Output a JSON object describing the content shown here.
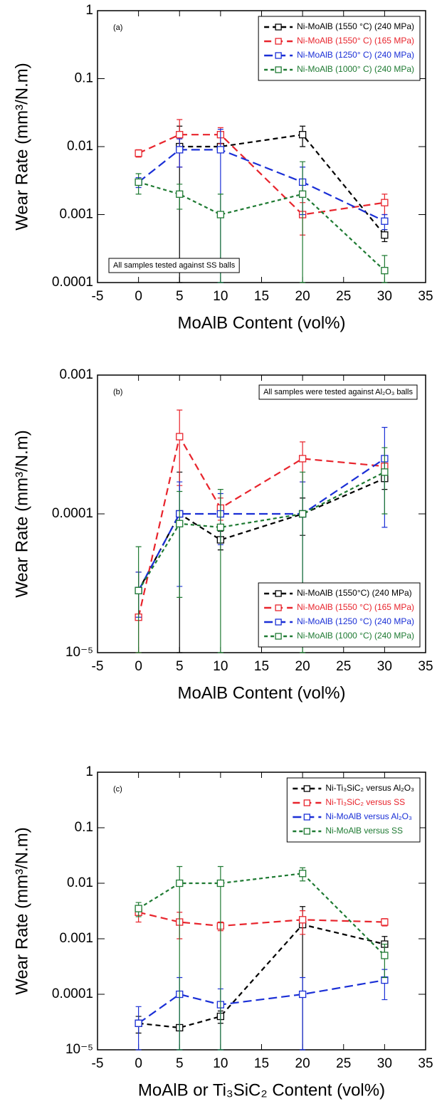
{
  "chart_data": [
    {
      "type": "line",
      "x_label": "MoAlB Content (vol%)",
      "y_label": "Wear Rate (mm³/N.m)",
      "log_y": true,
      "xlim": [
        -5,
        35
      ],
      "xticks": [
        -5,
        0,
        5,
        10,
        15,
        20,
        25,
        30,
        35
      ],
      "ylim": [
        0.0001,
        1
      ],
      "yticks": [
        0.0001,
        0.001,
        0.01,
        0.1,
        1
      ],
      "legend": "upper right",
      "annotations": [
        {
          "text": "(a)",
          "loc": "upper left",
          "box": false
        },
        {
          "text": "All samples tested against SS balls",
          "loc": "lower left",
          "box": true
        }
      ],
      "series": [
        {
          "name": "Ni-MoAlB (1550 °C) (240 MPa)",
          "color": "#000000",
          "x": [
            5,
            10,
            20,
            30
          ],
          "values": [
            0.01,
            0.01,
            0.015,
            0.0005
          ],
          "errors": [
            0.01,
            0.001,
            0.005,
            0.0001
          ]
        },
        {
          "name": "Ni-MoAlB (1550° C) (165 MPa)",
          "color": "#e8242c",
          "x": [
            0,
            5,
            10,
            20,
            30
          ],
          "values": [
            0.008,
            0.015,
            0.015,
            0.001,
            0.0015
          ],
          "errors": [
            0.001,
            0.01,
            0.004,
            0.0005,
            0.0005
          ]
        },
        {
          "name": "Ni-MoAlB (1250° C) (240 MPa)",
          "color": "#1a2fd6",
          "x": [
            0,
            5,
            10,
            20,
            30
          ],
          "values": [
            0.003,
            0.009,
            0.009,
            0.003,
            0.0008
          ],
          "errors": [
            0.0005,
            0.004,
            0.009,
            0.002,
            0.0002
          ]
        },
        {
          "name": "Ni-MoAlB (1000° C) (240 MPa)",
          "color": "#1e7a32",
          "x": [
            0,
            5,
            10,
            20,
            30
          ],
          "values": [
            0.003,
            0.002,
            0.001,
            0.002,
            0.00015
          ],
          "errors": [
            0.001,
            0.0008,
            0.001,
            0.004,
            0.0001
          ]
        }
      ]
    },
    {
      "type": "line",
      "x_label": "MoAlB Content (vol%)",
      "y_label": "Wear Rate (mm³/N.m)",
      "log_y": true,
      "xlim": [
        -5,
        35
      ],
      "xticks": [
        -5,
        0,
        5,
        10,
        15,
        20,
        25,
        30,
        35
      ],
      "ylim": [
        1e-05,
        0.001
      ],
      "yticks": [
        {
          "value": 1e-05,
          "label": "10⁻⁵"
        },
        0.0001,
        0.001
      ],
      "legend": "lower right",
      "annotations": [
        {
          "text": "(b)",
          "loc": "upper left",
          "box": false
        },
        {
          "text": "All samples were tested against Al₂O₃ balls",
          "loc": "upper right",
          "box": true
        }
      ],
      "series": [
        {
          "name": "Ni-MoAlB (1550°C) (240 MPa)",
          "color": "#000000",
          "x": [
            0,
            5,
            10,
            20,
            30
          ],
          "values": [
            2.8e-05,
            0.0001,
            6.5e-05,
            0.0001,
            0.00018
          ],
          "errors": [
            1e-05,
            0.0001,
            1e-05,
            3e-05,
            3e-05
          ]
        },
        {
          "name": "Ni-MoAlB (1550 °C) (165 MPa)",
          "color": "#e8242c",
          "x": [
            0,
            5,
            10,
            20,
            30
          ],
          "values": [
            1.8e-05,
            0.00036,
            0.00011,
            0.00025,
            0.00022
          ],
          "errors": [
            2e-05,
            0.0002,
            2e-05,
            8e-05,
            2e-05
          ]
        },
        {
          "name": "Ni-MoAlB (1250 °C) (240 MPa)",
          "color": "#1a2fd6",
          "x": [
            0,
            5,
            10,
            20,
            30
          ],
          "values": [
            2.8e-05,
            0.0001,
            0.0001,
            0.0001,
            0.00025
          ],
          "errors": [
            1e-05,
            7e-05,
            4e-05,
            7e-05,
            0.00017
          ]
        },
        {
          "name": "Ni-MoAlB (1000 °C) (240 MPa)",
          "color": "#1e7a32",
          "x": [
            0,
            5,
            10,
            20,
            30
          ],
          "values": [
            2.8e-05,
            8.5e-05,
            8e-05,
            0.0001,
            0.0002
          ],
          "errors": [
            3e-05,
            6e-05,
            7e-05,
            0.0001,
            0.0001
          ]
        }
      ]
    },
    {
      "type": "line",
      "x_label": "MoAlB or Ti₃SiC₂ Content (vol%)",
      "y_label": "Wear Rate (mm³/N.m)",
      "log_y": true,
      "xlim": [
        -5,
        35
      ],
      "xticks": [
        -5,
        0,
        5,
        10,
        15,
        20,
        25,
        30,
        35
      ],
      "ylim": [
        1e-05,
        1
      ],
      "yticks": [
        {
          "value": 1e-05,
          "label": "10⁻⁵"
        },
        0.0001,
        0.001,
        0.01,
        0.1,
        1
      ],
      "legend": "upper right",
      "annotations": [
        {
          "text": "(c)",
          "loc": "upper left",
          "box": false
        }
      ],
      "series": [
        {
          "name": "Ni-Ti₃SiC₂ versus Al₂O₃",
          "color": "#000000",
          "x": [
            0,
            5,
            10,
            20,
            30
          ],
          "values": [
            3e-05,
            2.5e-05,
            4e-05,
            0.0018,
            0.0008
          ],
          "errors": [
            1e-05,
            3e-06,
            1e-05,
            0.002,
            0.0003
          ]
        },
        {
          "name": "Ni-Ti₃SiC₂ versus SS",
          "color": "#e8242c",
          "x": [
            0,
            5,
            10,
            20,
            30
          ],
          "values": [
            0.003,
            0.002,
            0.0017,
            0.0022,
            0.002
          ],
          "errors": [
            0.001,
            0.001,
            0.0003,
            0.001,
            0.0003
          ]
        },
        {
          "name": "Ni-MoAlB versus Al₂O₃",
          "color": "#1a2fd6",
          "x": [
            0,
            5,
            10,
            20,
            30
          ],
          "values": [
            3e-05,
            0.0001,
            6.5e-05,
            0.0001,
            0.00018
          ],
          "errors": [
            3e-05,
            0.0001,
            6e-05,
            0.0001,
            0.0001
          ]
        },
        {
          "name": "Ni-MoAlB versus SS",
          "color": "#1e7a32",
          "x": [
            0,
            5,
            10,
            20,
            30
          ],
          "values": [
            0.0035,
            0.01,
            0.01,
            0.015,
            0.0005
          ],
          "errors": [
            0.001,
            0.01,
            0.01,
            0.004,
            0.0003
          ]
        }
      ]
    }
  ]
}
